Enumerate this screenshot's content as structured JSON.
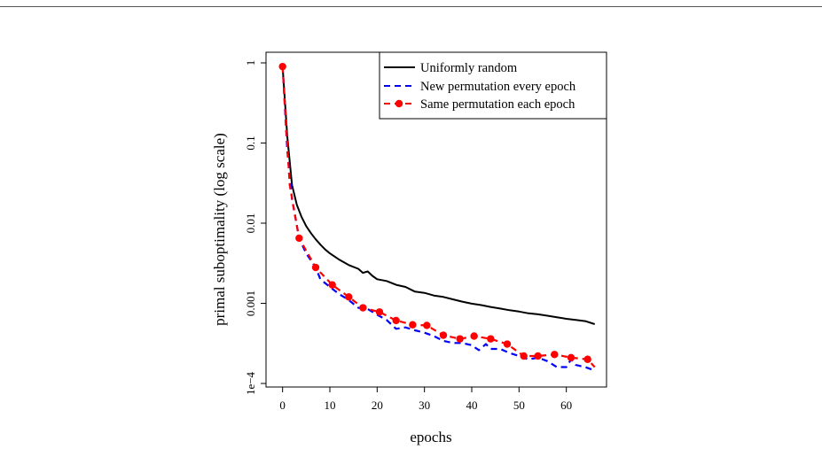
{
  "chart_data": {
    "type": "line",
    "xlabel": "epochs",
    "ylabel": "primal suboptimality (log scale)",
    "xlim": [
      -3.5,
      68.5
    ],
    "ylim": [
      0.0001,
      1
    ],
    "ylog": true,
    "xticks": [
      0,
      10,
      20,
      30,
      40,
      50,
      60
    ],
    "xtick_labels": [
      "0",
      "10",
      "20",
      "30",
      "40",
      "50",
      "60"
    ],
    "yticks": [
      1,
      0.1,
      0.01,
      0.001,
      0.0001
    ],
    "ytick_labels": [
      "1",
      "0.1",
      "0.01",
      "0.001",
      "1e−4"
    ],
    "legend_position": "top-right",
    "series": [
      {
        "name": "Uniformly random",
        "color": "#000000",
        "style": "solid",
        "marker": "none",
        "x": [
          0,
          1,
          2,
          3,
          4,
          5,
          6,
          7,
          8,
          9,
          10,
          12,
          14,
          16,
          17,
          18,
          19,
          20,
          22,
          24,
          26,
          28,
          30,
          32,
          34,
          36,
          38,
          40,
          42,
          44,
          46,
          48,
          50,
          52,
          54,
          56,
          58,
          60,
          62,
          64,
          66
        ],
        "y": [
          0.9,
          0.12,
          0.03,
          0.017,
          0.012,
          0.0092,
          0.0075,
          0.0063,
          0.0054,
          0.0047,
          0.0042,
          0.0035,
          0.003,
          0.0027,
          0.0024,
          0.0025,
          0.0022,
          0.002,
          0.0019,
          0.0017,
          0.0016,
          0.0014,
          0.00135,
          0.00125,
          0.0012,
          0.00112,
          0.00105,
          0.00099,
          0.00095,
          0.0009,
          0.00086,
          0.00082,
          0.00079,
          0.00075,
          0.00073,
          0.0007,
          0.00067,
          0.00064,
          0.00062,
          0.0006,
          0.00055
        ]
      },
      {
        "name": "New permutation every epoch",
        "color": "#0000ff",
        "style": "dashed",
        "marker": "none",
        "x": [
          0,
          1,
          2,
          3.5,
          5,
          7,
          8,
          10,
          12,
          14,
          16,
          18,
          20,
          22,
          24,
          26,
          28,
          30,
          32,
          34,
          36,
          38,
          40,
          41.5,
          43,
          44,
          46,
          48,
          50,
          52,
          54,
          56,
          58,
          60,
          61,
          62,
          64,
          66
        ],
        "y": [
          0.9,
          0.08,
          0.02,
          0.0065,
          0.0042,
          0.0028,
          0.002,
          0.0016,
          0.0013,
          0.0011,
          0.00088,
          0.00085,
          0.00072,
          0.00062,
          0.00048,
          0.0005,
          0.00046,
          0.00043,
          0.00039,
          0.00034,
          0.00032,
          0.00032,
          0.0003,
          0.00026,
          0.00031,
          0.00027,
          0.00027,
          0.00024,
          0.00022,
          0.0002,
          0.00021,
          0.00019,
          0.00016,
          0.00016,
          0.0002,
          0.00017,
          0.00016,
          0.000145
        ]
      },
      {
        "name": "Same permutation each epoch",
        "color": "#ff0000",
        "style": "dashed",
        "marker": "dot",
        "x": [
          0,
          1.5,
          3.5,
          7,
          10.5,
          14,
          17,
          20.5,
          24,
          27.5,
          30.5,
          34,
          37.5,
          40.5,
          44,
          47.5,
          51,
          54,
          57.5,
          61,
          64.5,
          66
        ],
        "y": [
          0.9,
          0.03,
          0.0065,
          0.0028,
          0.0017,
          0.0012,
          0.00088,
          0.00078,
          0.00061,
          0.00054,
          0.00053,
          0.0004,
          0.00036,
          0.00039,
          0.00036,
          0.00031,
          0.00022,
          0.00022,
          0.00023,
          0.00021,
          0.0002,
          0.00016
        ],
        "points": [
          {
            "x": 0,
            "y": 0.9
          },
          {
            "x": 3.5,
            "y": 0.0065
          },
          {
            "x": 7,
            "y": 0.0028
          },
          {
            "x": 10.5,
            "y": 0.0017
          },
          {
            "x": 14,
            "y": 0.0012
          },
          {
            "x": 17,
            "y": 0.00088
          },
          {
            "x": 20.5,
            "y": 0.00078
          },
          {
            "x": 24,
            "y": 0.00061
          },
          {
            "x": 27.5,
            "y": 0.00054
          },
          {
            "x": 30.5,
            "y": 0.00053
          },
          {
            "x": 34,
            "y": 0.0004
          },
          {
            "x": 37.5,
            "y": 0.00036
          },
          {
            "x": 40.5,
            "y": 0.00039
          },
          {
            "x": 44,
            "y": 0.00036
          },
          {
            "x": 47.5,
            "y": 0.00031
          },
          {
            "x": 51,
            "y": 0.00022
          },
          {
            "x": 54,
            "y": 0.00022
          },
          {
            "x": 57.5,
            "y": 0.00023
          },
          {
            "x": 61,
            "y": 0.00021
          },
          {
            "x": 64.5,
            "y": 0.0002
          }
        ]
      }
    ]
  }
}
